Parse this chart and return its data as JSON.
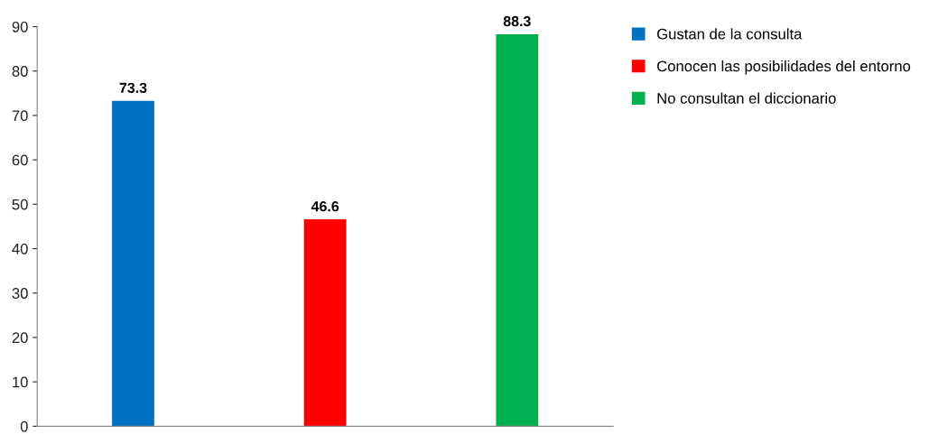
{
  "chart_data": {
    "type": "bar",
    "categories": [
      null,
      null,
      null
    ],
    "series": [
      {
        "name": "Gustan de la consulta",
        "color": "#0070c0",
        "values": [
          73.3,
          null,
          null
        ]
      },
      {
        "name": "Conocen las posibilidades del entorno",
        "color": "#ff0000",
        "values": [
          null,
          46.6,
          null
        ]
      },
      {
        "name": "No consultan el diccionario",
        "color": "#00b050",
        "values": [
          null,
          null,
          88.3
        ]
      }
    ],
    "ylim": [
      0,
      90
    ],
    "yticks": [
      0,
      10,
      20,
      30,
      40,
      50,
      60,
      70,
      80,
      90
    ],
    "tick_labels": "y",
    "data_labels": true,
    "legend": "right",
    "grid": false
  }
}
